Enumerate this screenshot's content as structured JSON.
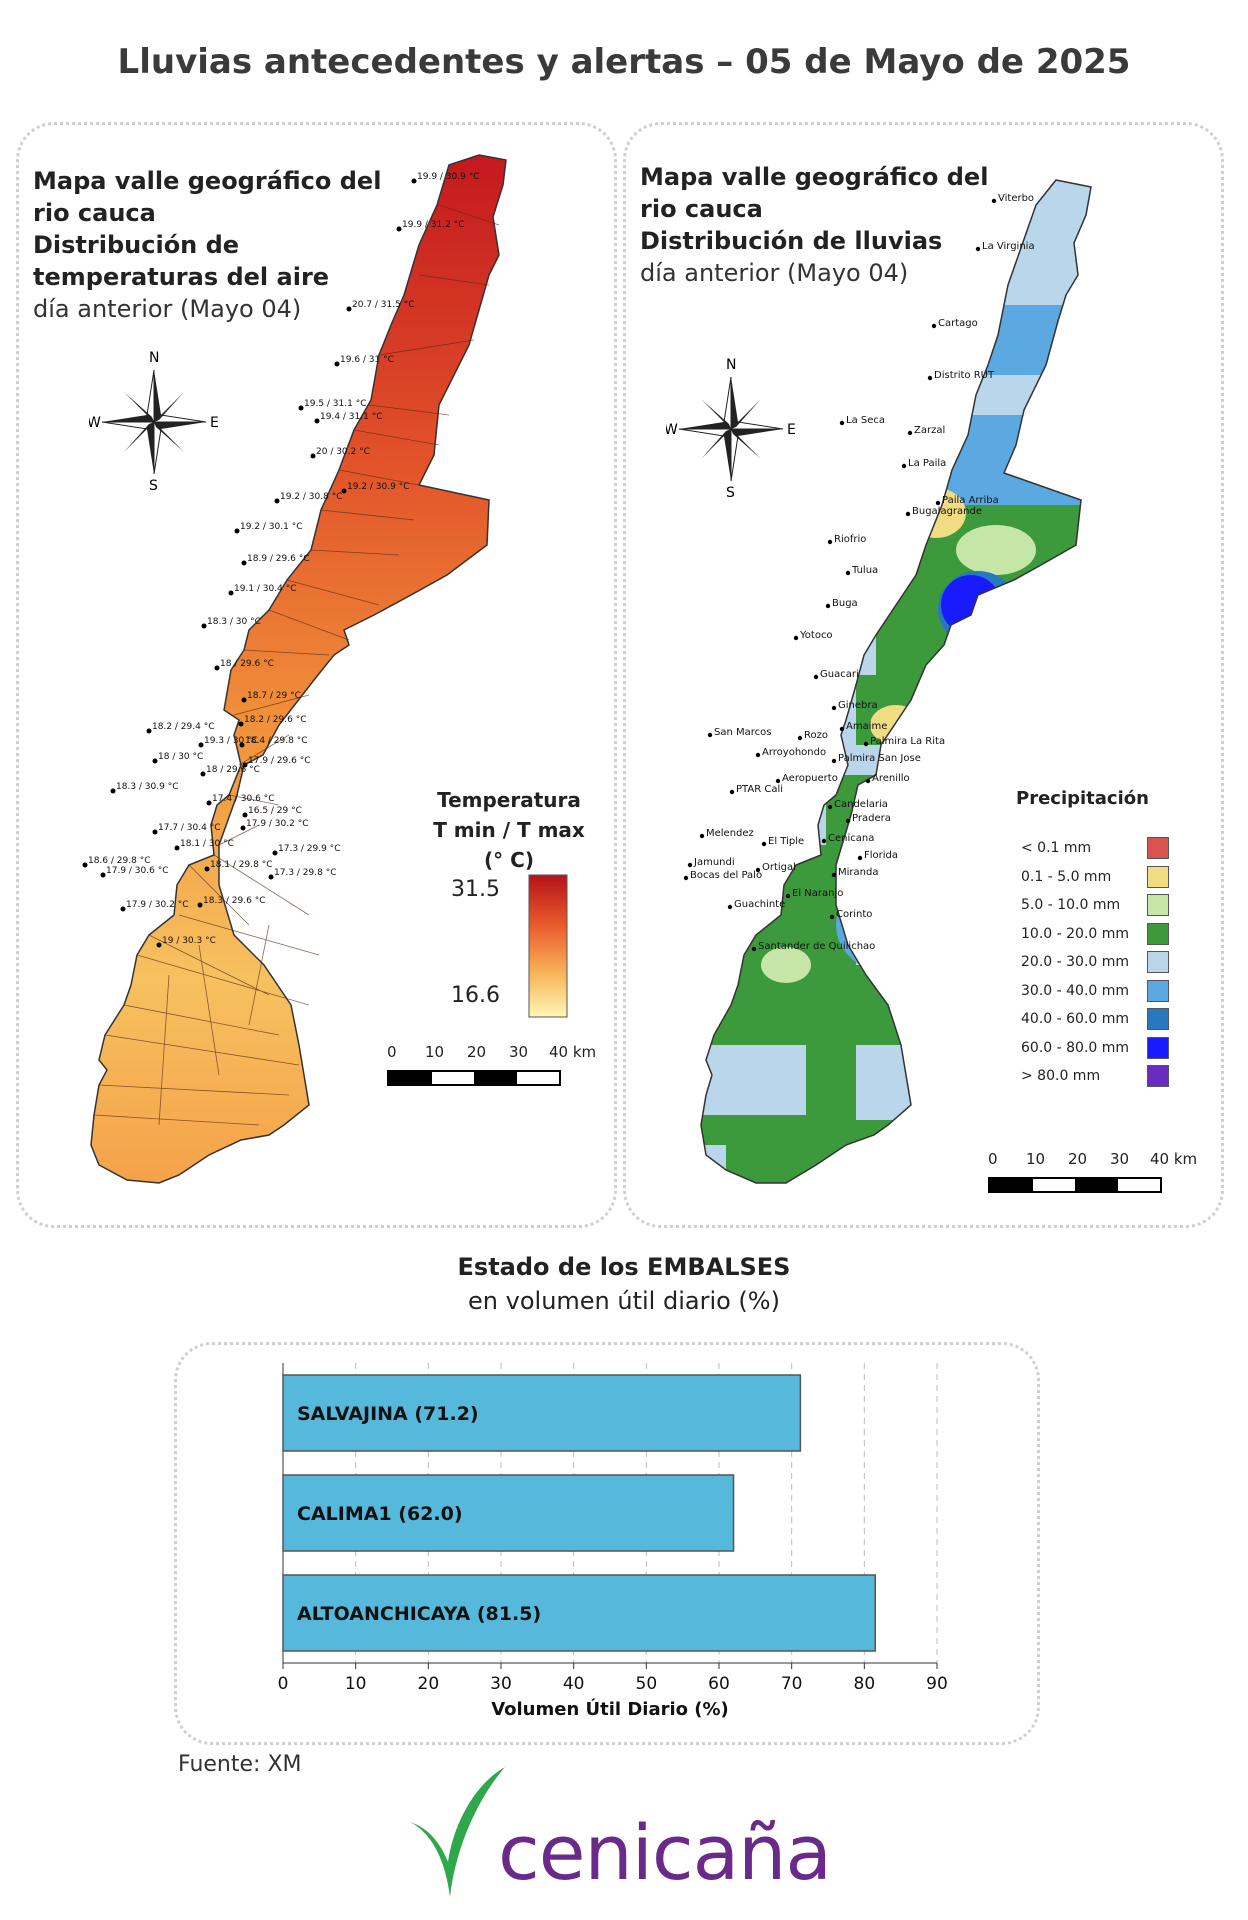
{
  "title": "Lluvias antecedentes y alertas – 05 de Mayo de 2025",
  "temperature_map": {
    "heading_line1": "Mapa valle geográfico del",
    "heading_line2": "rio cauca",
    "heading_line3": "Distribución de",
    "heading_line4": "temperaturas del aire",
    "heading_line5": "día anterior (Mayo 04)",
    "compass": {
      "n": "N",
      "s": "S",
      "e": "E",
      "w": "W"
    },
    "legend_title_1": "Temperatura",
    "legend_title_2": "T min / T max",
    "legend_title_3": "(° C)",
    "legend_max": "31.5",
    "legend_min": "16.6",
    "scale_ticks": [
      "0",
      "10",
      "20",
      "30",
      "40 km"
    ],
    "station_labels": [
      "19.9 / 30.9 °C",
      "19.9 / 31.2 °C",
      "20.7 / 31.5 °C",
      "19.6 / 31 °C",
      "19.5 / 31.1 °C",
      "19.4 / 31.1 °C",
      "20 / 30.2 °C",
      "19.2 / 30.9 °C",
      "19.2 / 30.8 °C",
      "19.2 / 30.1 °C",
      "18.9 / 29.6 °C",
      "19.1 / 30.4 °C",
      "18.3 / 30 °C",
      "18 / 29.6 °C",
      "18.7 / 29 °C",
      "18.2 / 29.4 °C",
      "18.2 / 29.6 °C",
      "19.3 / 30 °C",
      "18.4 / 29.8 °C",
      "18 / 30 °C",
      "17.9 / 29.6 °C",
      "18.3 / 30.9 °C",
      "18 / 29.6 °C",
      "17.4 / 30.6 °C",
      "16.5 / 29 °C",
      "17.7 / 30.4 °C",
      "17.9 / 30.2 °C",
      "18.1 / 30 °C",
      "17.3 / 29.9 °C",
      "18.6 / 29.8 °C",
      "18.1 / 29.8 °C",
      "17.9 / 30.6 °C",
      "17.3 / 29.8 °C",
      "17.9 / 30.2 °C",
      "18.3 / 29.6 °C",
      "19 / 30.3 °C"
    ]
  },
  "rain_map": {
    "heading_line1": "Mapa valle geográfico del",
    "heading_line2": "rio cauca",
    "heading_line3": "Distribución de lluvias",
    "heading_line4": "día anterior (Mayo 04)",
    "compass": {
      "n": "N",
      "s": "S",
      "e": "E",
      "w": "W"
    },
    "legend_title": "Precipitación",
    "legend": [
      {
        "label": "< 0.1 mm",
        "color": "#d9534f"
      },
      {
        "label": "0.1 - 5.0 mm",
        "color": "#f0dc82"
      },
      {
        "label": "5.0 - 10.0 mm",
        "color": "#c6e6a8"
      },
      {
        "label": "10.0 - 20.0 mm",
        "color": "#3c9a3c"
      },
      {
        "label": "20.0 - 30.0 mm",
        "color": "#b9d6ea"
      },
      {
        "label": "30.0 - 40.0 mm",
        "color": "#5ba9e0"
      },
      {
        "label": "40.0 - 60.0 mm",
        "color": "#2878bf"
      },
      {
        "label": "60.0 - 80.0 mm",
        "color": "#1a1aff"
      },
      {
        "label": "> 80.0 mm",
        "color": "#6a2bc0"
      }
    ],
    "scale_ticks": [
      "0",
      "10",
      "20",
      "30",
      "40 km"
    ],
    "stations": [
      "Viterbo",
      "La Virginia",
      "Cartago",
      "Distrito RUT",
      "La Seca",
      "Zarzal",
      "La Paila",
      "Paila Arriba",
      "Bugalagrande",
      "Riofrio",
      "Tulua",
      "Buga",
      "Yotoco",
      "Guacari",
      "Ginebra",
      "Amaime",
      "San Marcos",
      "Rozo",
      "Palmira La Rita",
      "Arroyohondo",
      "Palmira San Jose",
      "Aeropuerto",
      "Arenillo",
      "PTAR Cali",
      "Candelaria",
      "Pradera",
      "Melendez",
      "Cenicana",
      "El Tiple",
      "Florida",
      "Jamundi",
      "Bocas del Palo",
      "Ortigal",
      "Miranda",
      "Guachinte",
      "El Naranjo",
      "Corinto",
      "Santander de Quilichao"
    ]
  },
  "reservoirs": {
    "title": "Estado de los EMBALSES",
    "subtitle": "en volumen útil diario (%)",
    "source": "Fuente: XM"
  },
  "chart_data": {
    "type": "bar",
    "orientation": "horizontal",
    "categories": [
      "SALVAJINA",
      "CALIMA1",
      "ALTOANCHICAYA"
    ],
    "values": [
      71.2,
      62.0,
      81.5
    ],
    "bar_labels": [
      "SALVAJINA (71.2)",
      "CALIMA1 (62.0)",
      "ALTOANCHICAYA (81.5)"
    ],
    "xlabel": "Volumen Útil Diario (%)",
    "xlim": [
      0,
      90
    ],
    "xticks": [
      "0",
      "10",
      "20",
      "30",
      "40",
      "50",
      "60",
      "70",
      "80",
      "90"
    ],
    "grid": "vertical dashed",
    "bar_color": "#56b9db"
  },
  "logo": {
    "text": "cenicaña",
    "color": "#6a2a8a",
    "leaf_color": "#2ea84a"
  }
}
